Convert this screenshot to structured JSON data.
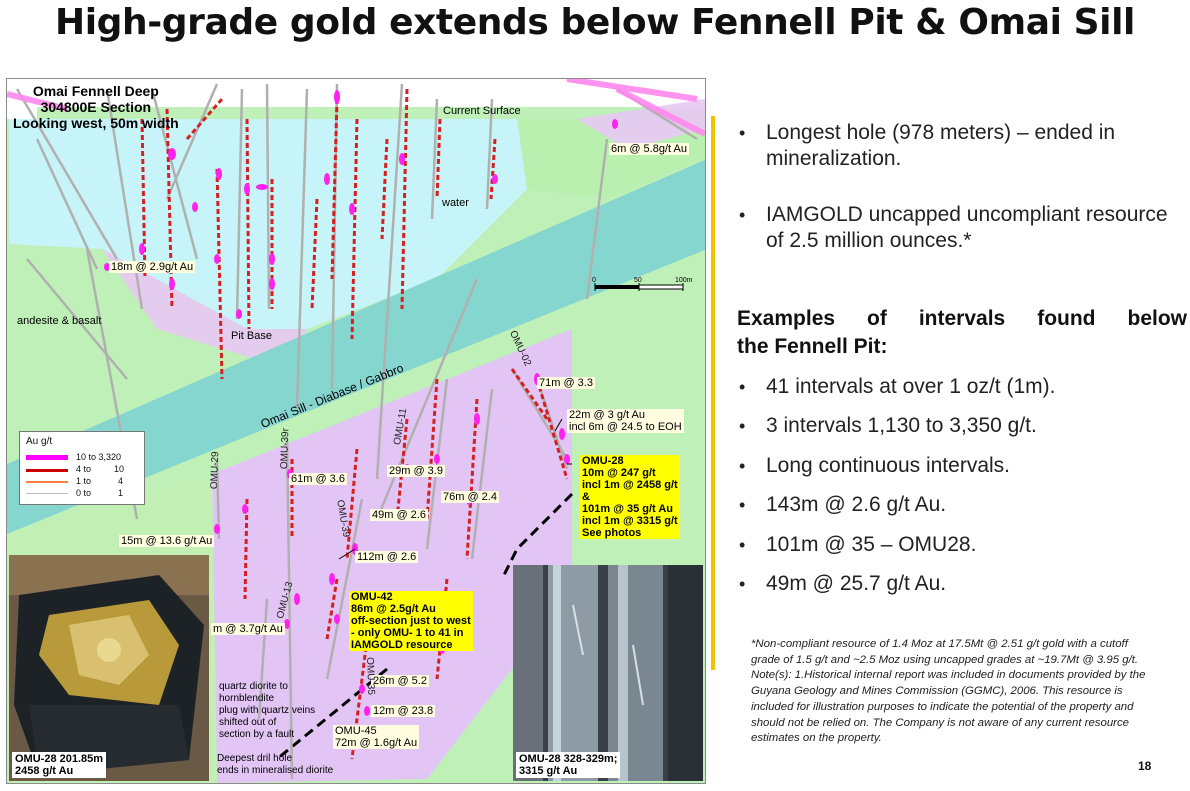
{
  "slide": {
    "title": "High-grade gold extends below Fennell Pit & Omai Sill",
    "page_number": "18"
  },
  "section": {
    "title_lines": [
      "Omai Fennell Deep",
      "304800E Section",
      "Looking west, 50m width"
    ],
    "geology_labels": {
      "current_surface": "Current Surface",
      "water": "water",
      "andesite": "andesite & basalt",
      "pit_base": "Pit Base",
      "sill": "Omai Sill - Diabase / Gabbro",
      "quartz_diorite": "quartz diorite to\nhornblendite\nplug with quartz veins\nshifted out of\nsection by a fault",
      "deepest_hole": "Deepest dril hole\nends in mineralised diorite"
    },
    "scale": {
      "ticks": [
        "0",
        "50",
        "100m"
      ]
    },
    "legend": {
      "title": "Au g/t",
      "rows": [
        {
          "range_low": "10",
          "range_high": "3,320",
          "label": "10 to 3,320",
          "color": "#ff00ff"
        },
        {
          "range_low": "4",
          "range_high": "10",
          "label": "4 to",
          "label_high": "10",
          "color": "#cc0000"
        },
        {
          "range_low": "1",
          "range_high": "4",
          "label": "1 to",
          "label_high": "4",
          "color": "#ff8040"
        },
        {
          "range_low": "0",
          "range_high": "1",
          "label": "0 to",
          "label_high": "1",
          "color": "#bbbbbb"
        }
      ]
    },
    "intercepts": {
      "i1": "6m @ 5.8g/t Au",
      "i2": "18m @ 2.9g/t Au",
      "i3": "71m @ 3.3",
      "i4": "22m @ 3 g/t Au\nincl 6m @ 24.5 to EOH",
      "i5": "61m @ 3.6",
      "i6": "29m @ 3.9",
      "i7": "76m @ 2.4",
      "i8": "49m @ 2.6",
      "i9": "15m @ 13.6 g/t Au",
      "i10": "112m @ 2.6",
      "i11": "m @ 3.7g/t Au",
      "i12": "26m @ 5.2",
      "i13": "12m @ 23.8",
      "omu45": "OMU-45\n72m @ 1.6g/t Au"
    },
    "highlight_omu28": "OMU-28\n10m @ 247 g/t\nincl 1m @ 2458 g/t\n&\n101m @ 35 g/t Au\nincl 1m @ 3315 g/t\nSee photos",
    "highlight_omu42": "OMU-42\n86m @ 2.5g/t Au\noff-section just to west\n- only OMU- 1 to 41 in\nIAMGOLD resource",
    "hole_labels": {
      "omu02": "OMU-02",
      "omu11": "OMU-11",
      "omu39r": "OMU-39r",
      "omu29": "OMU-29",
      "omu39": "OMU-39",
      "omu13": "OMU-13",
      "omu35": "OMU-35"
    },
    "photos": {
      "left_caption": "OMU-28 201.85m\n2458 g/t Au",
      "right_caption": "OMU-28 328-329m;\n3315 g/t Au"
    }
  },
  "bullets_top": [
    "Longest hole (978 meters) – ended in mineralization.",
    "IAMGOLD uncapped uncompliant resource of 2.5 million ounces.*"
  ],
  "subheading_lines": [
    "Examples of intervals found below",
    "the Fennell Pit:"
  ],
  "bullets_bottom": [
    "41 intervals at over 1 oz/t (1m).",
    "3 intervals 1,130 to 3,350 g/t.",
    "Long continuous intervals.",
    "143m @ 2.6 g/t Au.",
    "101m @ 35 – OMU28.",
    "49m @ 25.7 g/t Au."
  ],
  "footnote": "*Non-compliant resource of 1.4 Moz at 17.5Mt @ 2.51 g/t gold with a cutoff grade of 1.5 g/t and ~2.5 Moz using uncapped grades at ~19.7Mt @ 3.95 g/t. Note(s): 1.Historical internal report  was included in documents provided by the Guyana Geology and Mines Commission (GGMC), 2006. This resource is included for illustration purposes to  indicate the potential of the property and should not be relied on. The Company is not aware of any current resource estimates on the property."
}
